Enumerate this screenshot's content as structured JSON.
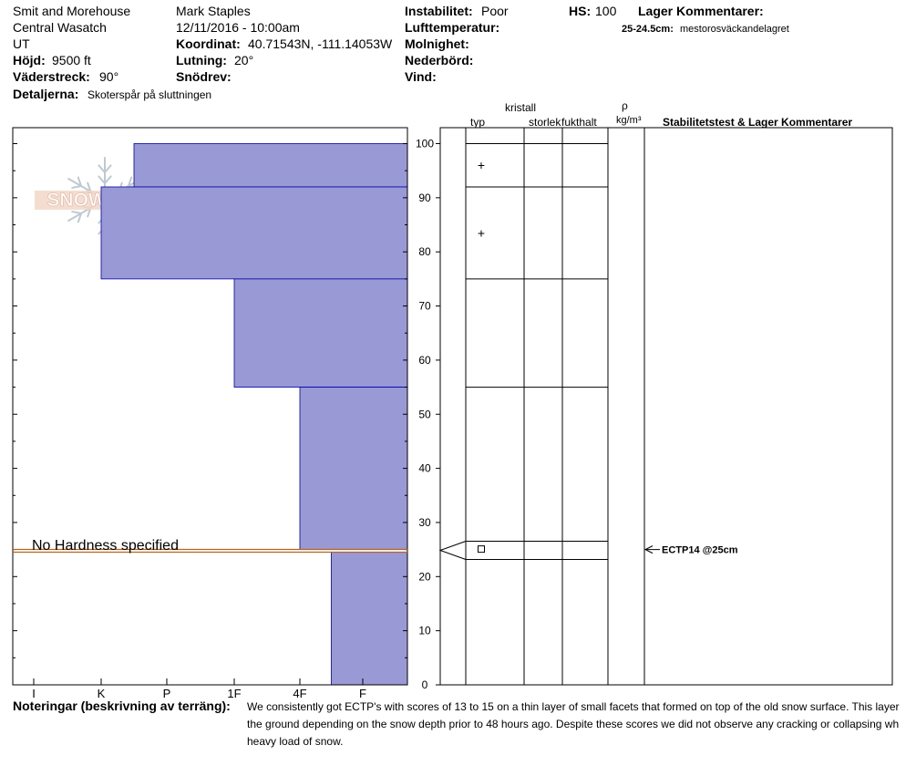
{
  "header": {
    "location": "Smit and Morehouse",
    "range": "Central Wasatch",
    "state": "UT",
    "elevation_label": "Höjd:",
    "elevation_value": "9500 ft",
    "aspect_label": "Väderstreck:",
    "aspect_value": "90°",
    "details_label": "Detaljerna:",
    "details_value": "Skoterspår på sluttningen",
    "observer": "Mark Staples",
    "datetime": "12/11/2016 - 10:00am",
    "coord_label": "Koordinat:",
    "coord_value": "40.71543N, -111.14053W",
    "slope_label": "Lutning:",
    "slope_value": "20°",
    "drift_label": "Snödrev:",
    "instability_label": "Instabilitet:",
    "instability_value": "Poor",
    "airtemp_label": "Lufttemperatur:",
    "cloud_label": "Molnighet:",
    "precip_label": "Nederbörd:",
    "wind_label": "Vind:",
    "hs_label": "HS:",
    "hs_value": "100",
    "layer_comments_label": "Lager Kommentarer:",
    "layer_comment_range": "25-24.5cm:",
    "layer_comment_text": "mestorosväckandelagret"
  },
  "logo_text": "SNOWPILOT",
  "columns": {
    "crystal": "kristall",
    "type": "typ",
    "size": "storlek",
    "moisture": "fukthalt",
    "rho": "ρ",
    "density_unit": "kg/m³",
    "stability": "Stabilitetstest & Lager Kommentarer"
  },
  "no_hardness_label": "No Hardness specified",
  "notes": {
    "label": "Noteringar (beskrivning av terräng):",
    "lines": [
      "We consistently got ECTP's with scores of 13 to 15 on a thin layer of small facets that formed on top of the old snow surface. This layer",
      "the ground depending on the snow depth prior to 48 hours ago. Despite these scores we did not observe any cracking or collapsing wh",
      "heavy load of snow."
    ]
  },
  "colors": {
    "layer_fill": "#9999d6",
    "layer_stroke": "#0000aa",
    "weak_layer": "#b5651d"
  },
  "chart_data": {
    "type": "bar",
    "ylabel": "",
    "ylim": [
      0,
      100
    ],
    "yticks": [
      0,
      10,
      20,
      30,
      40,
      50,
      60,
      70,
      80,
      90,
      100
    ],
    "hardness_scale": [
      "I",
      "K",
      "P",
      "1F",
      "4F",
      "F"
    ],
    "layers": [
      {
        "top": 100,
        "bottom": 92,
        "hardness": 1.5
      },
      {
        "top": 92,
        "bottom": 75,
        "hardness": 1.0
      },
      {
        "top": 75,
        "bottom": 55,
        "hardness": 3.0
      },
      {
        "top": 55,
        "bottom": 25,
        "hardness": 4.0
      },
      {
        "top": 25,
        "bottom": 24.5,
        "hardness": null
      },
      {
        "top": 24.5,
        "bottom": 0,
        "hardness": 4.5
      }
    ],
    "grain_symbols": [
      {
        "depth": 96,
        "symbol": "+"
      },
      {
        "depth": 83.5,
        "symbol": "+"
      }
    ],
    "facet_marker_depth": 25,
    "stability_tests": [
      {
        "depth": 25,
        "label": "ECTP14 @25cm"
      }
    ]
  }
}
